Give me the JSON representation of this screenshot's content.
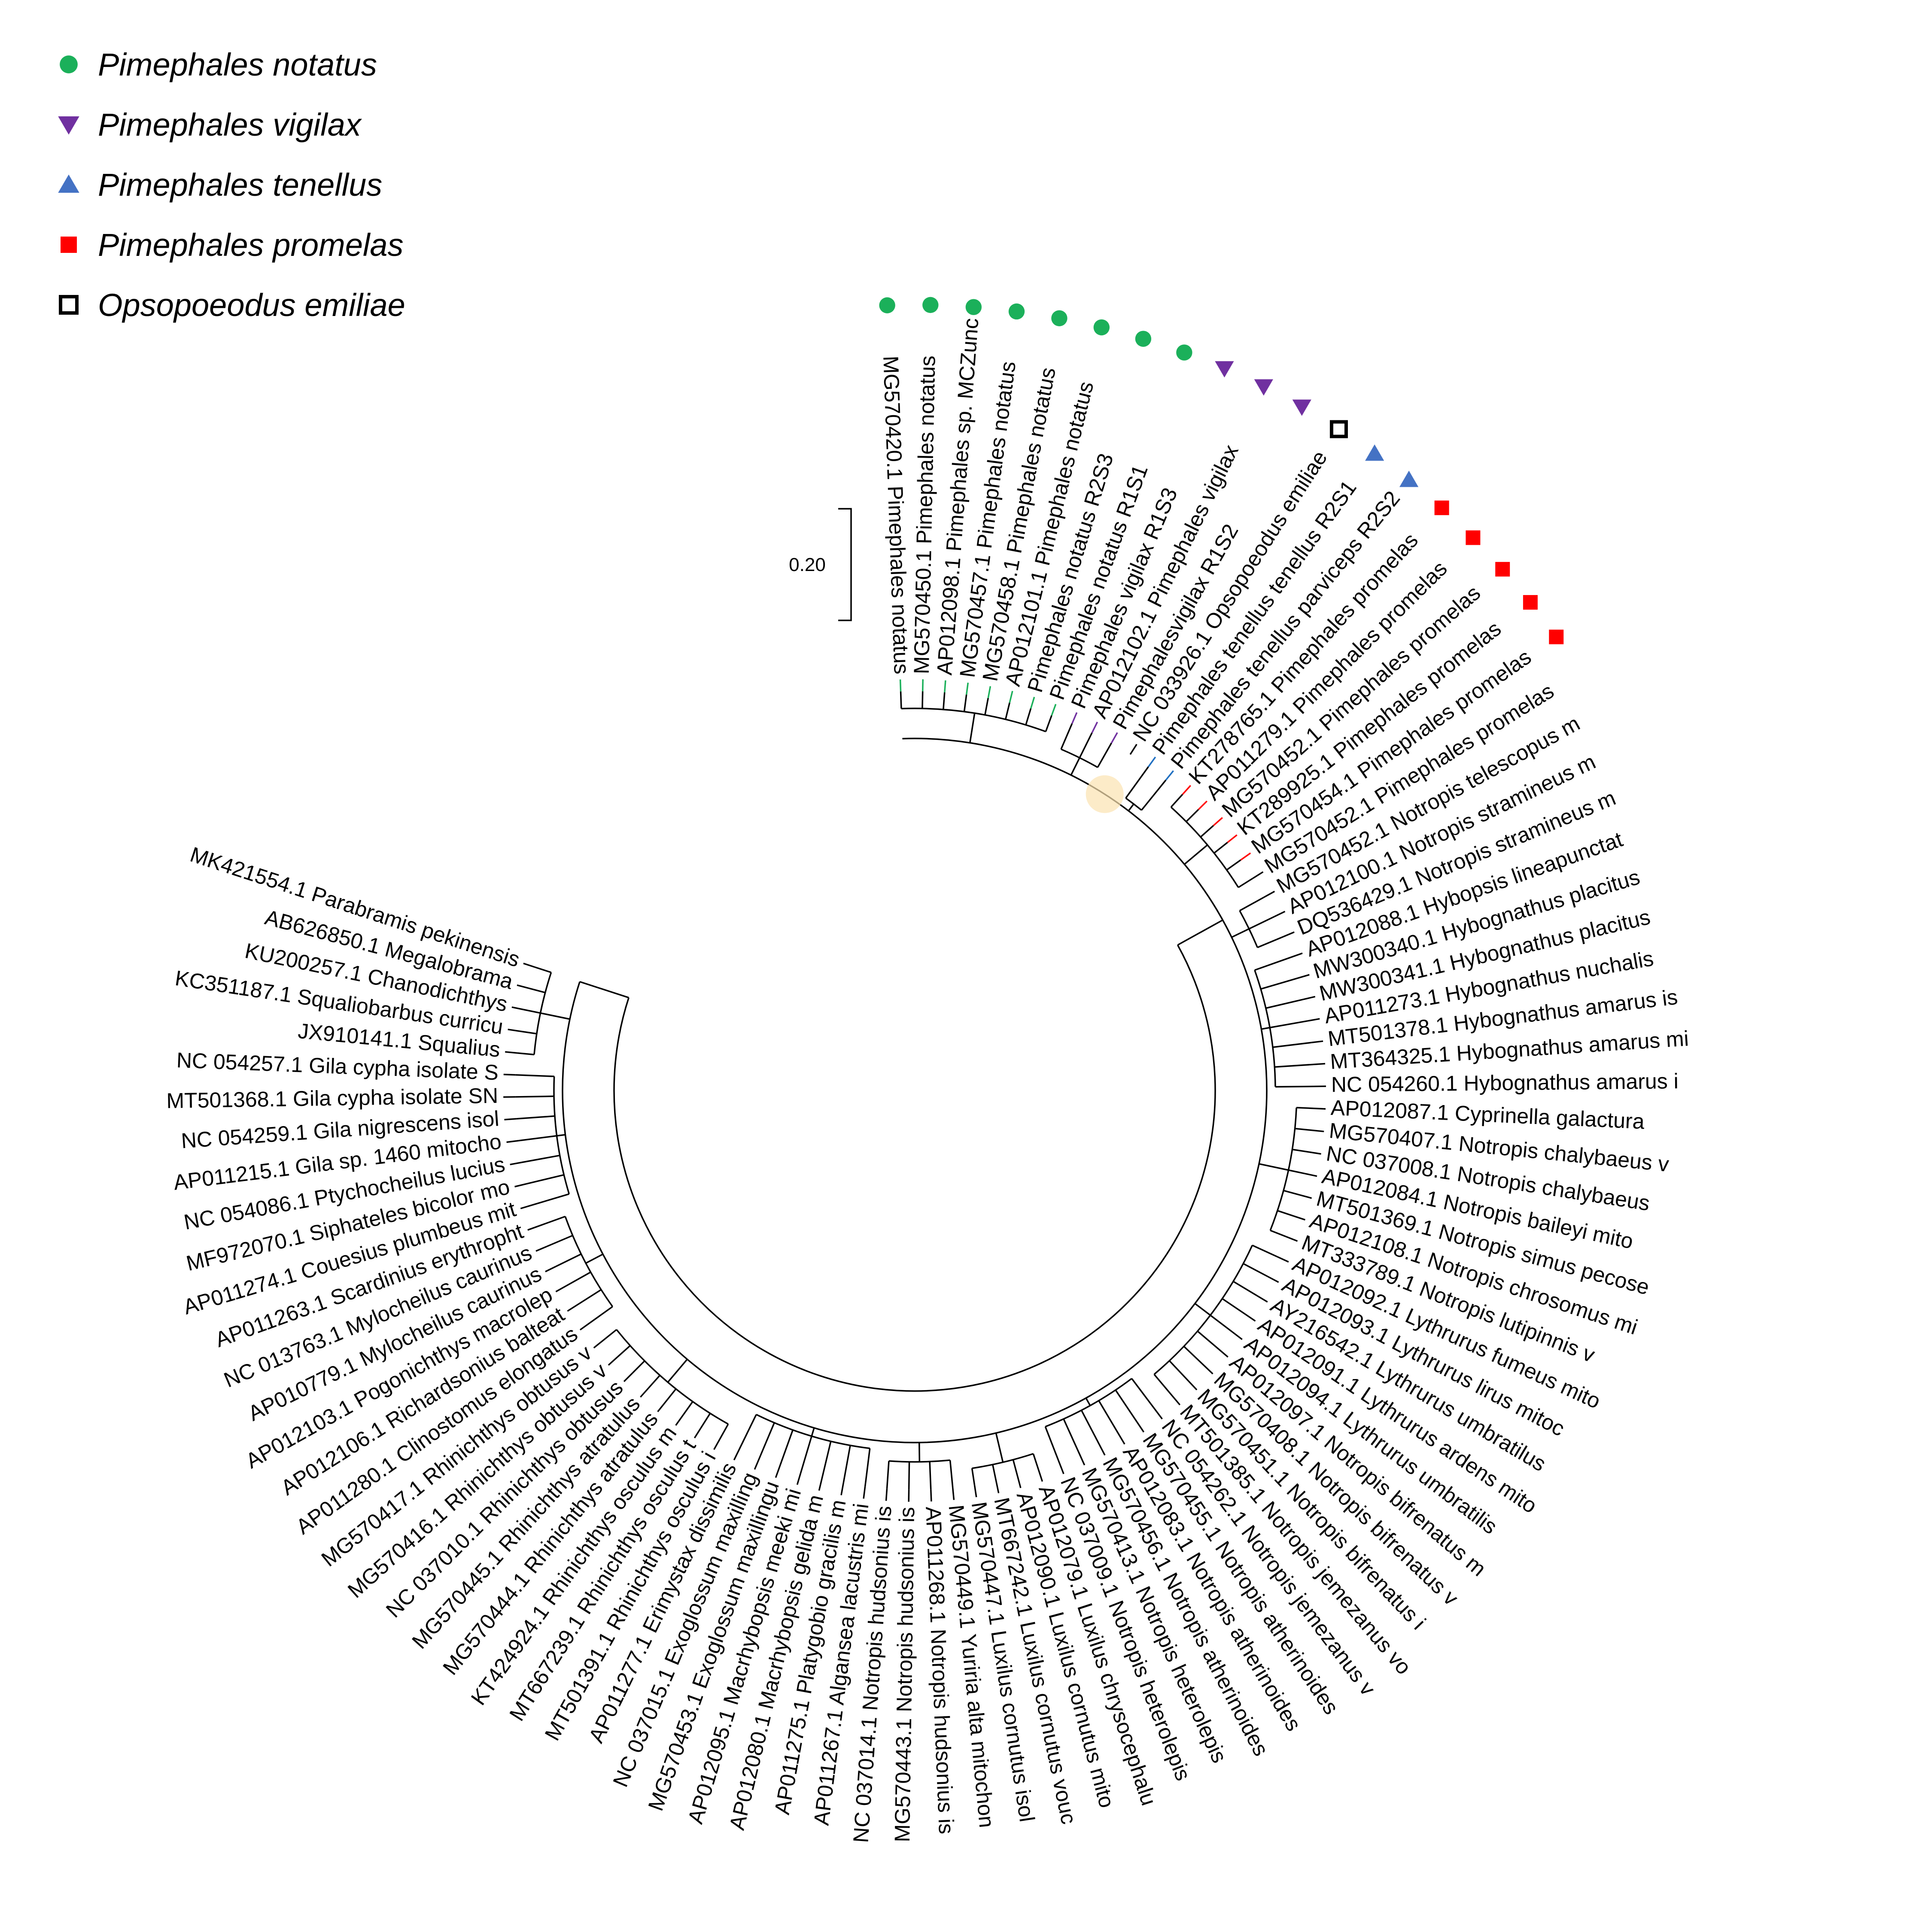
{
  "legend": [
    {
      "label": "Pimephales notatus",
      "marker": "circle",
      "color": "#1bb05a"
    },
    {
      "label": "Pimephales vigilax",
      "marker": "triangle-down",
      "color": "#7030a0"
    },
    {
      "label": "Pimephales tenellus",
      "marker": "triangle-up",
      "color": "#4472c4"
    },
    {
      "label": "Pimephales promelas",
      "marker": "square",
      "color": "#ff0000"
    },
    {
      "label": "Opsopoeodus emiliae",
      "marker": "open-square",
      "color": "#000000"
    }
  ],
  "scale_bar": {
    "label": "0.20"
  },
  "taxa": [
    {
      "label": "MG570420.1 Pimephales notatus",
      "marker": "notatus"
    },
    {
      "label": "MG570450.1 Pimephales notatus",
      "marker": "notatus"
    },
    {
      "label": "AP012098.1 Pimephales sp. MCZunc",
      "marker": "notatus"
    },
    {
      "label": "MG570457.1 Pimephales notatus",
      "marker": "notatus"
    },
    {
      "label": "MG570458.1 Pimephales notatus",
      "marker": "notatus"
    },
    {
      "label": "AP012101.1 Pimephales notatus",
      "marker": "notatus"
    },
    {
      "label": "Pimephales notatus R2S3",
      "marker": "notatus"
    },
    {
      "label": "Pimephales notatus R1S1",
      "marker": "notatus"
    },
    {
      "label": "Pimephales vigilax R1S3",
      "marker": "vigilax"
    },
    {
      "label": "AP012102.1 Pimephales vigilax",
      "marker": "vigilax"
    },
    {
      "label": "Pimephalesvigilax R1S2",
      "marker": "vigilax"
    },
    {
      "label": "NC 033926.1 Opsopoeodus emiliae",
      "marker": "emiliae"
    },
    {
      "label": "Pimephales tenellus tenellus R2S1",
      "marker": "tenellus"
    },
    {
      "label": "Pimephales tenellus parviceps R2S2",
      "marker": "tenellus"
    },
    {
      "label": "KT278765.1 Pimephales promelas",
      "marker": "promelas"
    },
    {
      "label": "AP011279.1 Pimephales promelas",
      "marker": "promelas"
    },
    {
      "label": "MG570452.1 Pimephales promelas",
      "marker": "promelas"
    },
    {
      "label": "KT289925.1 Pimephales promelas",
      "marker": "promelas"
    },
    {
      "label": "MG570454.1 Pimephales promelas",
      "marker": "promelas"
    },
    {
      "label": "MG570452.1 Pimephales promelas",
      "marker": ""
    },
    {
      "label": "MG570452.1 Notropis telescopus m",
      "marker": ""
    },
    {
      "label": "AP012100.1 Notropis stramineus m",
      "marker": ""
    },
    {
      "label": "DQ536429.1 Notropis stramineus m",
      "marker": ""
    },
    {
      "label": "AP012088.1 Hybopsis lineapunctat",
      "marker": ""
    },
    {
      "label": "MW300340.1 Hybognathus placitus",
      "marker": ""
    },
    {
      "label": "MW300341.1 Hybognathus placitus",
      "marker": ""
    },
    {
      "label": "AP011273.1 Hybognathus nuchalis",
      "marker": ""
    },
    {
      "label": "MT501378.1 Hybognathus amarus is",
      "marker": ""
    },
    {
      "label": "MT364325.1 Hybognathus amarus mi",
      "marker": ""
    },
    {
      "label": "NC 054260.1 Hybognathus amarus i",
      "marker": ""
    },
    {
      "label": "AP012087.1 Cyprinella galactura",
      "marker": ""
    },
    {
      "label": "MG570407.1 Notropis chalybaeus v",
      "marker": ""
    },
    {
      "label": "NC 037008.1 Notropis chalybaeus",
      "marker": ""
    },
    {
      "label": "AP012084.1 Notropis baileyi mito",
      "marker": ""
    },
    {
      "label": "MT501369.1 Notropis simus pecose",
      "marker": ""
    },
    {
      "label": "AP012108.1 Notropis chrosomus mi",
      "marker": ""
    },
    {
      "label": "MT333789.1 Notropis lutipinnis v",
      "marker": ""
    },
    {
      "label": "AP012092.1 Lythrurus fumeus mito",
      "marker": ""
    },
    {
      "label": "AP012093.1 Lythrurus lirus mitoc",
      "marker": ""
    },
    {
      "label": "AY216542.1 Lythrurus umbratilus",
      "marker": ""
    },
    {
      "label": "AP012091.1 Lythrurus ardens mito",
      "marker": ""
    },
    {
      "label": "AP012094.1 Lythrurus umbratilis",
      "marker": ""
    },
    {
      "label": "AP012097.1 Notropis bifrenatus m",
      "marker": ""
    },
    {
      "label": "MG570408.1 Notropis bifrenatus v",
      "marker": ""
    },
    {
      "label": "MG570451.1 Notropis bifrenatus i",
      "marker": ""
    },
    {
      "label": "MT501385.1 Notropis jemezanus vo",
      "marker": ""
    },
    {
      "label": "NC 054262.1 Notropis jemezanus v",
      "marker": ""
    },
    {
      "label": "MG570455.1 Notropis atherinoides",
      "marker": ""
    },
    {
      "label": "AP012083.1 Notropis atherinoides",
      "marker": ""
    },
    {
      "label": "MG570456.1 Notropis atherinoides",
      "marker": ""
    },
    {
      "label": "MG570413.1 Notropis heterolepis",
      "marker": ""
    },
    {
      "label": "NC 037009.1 Notropis heterolepis",
      "marker": ""
    },
    {
      "label": "AP012079.1 Luxilus chrysocephalu",
      "marker": ""
    },
    {
      "label": "AP012090.1 Luxilus cornutus mito",
      "marker": ""
    },
    {
      "label": "MT667242.1 Luxilus cornutus vouc",
      "marker": ""
    },
    {
      "label": "MG570447.1 Luxilus cornutus isol",
      "marker": ""
    },
    {
      "label": "MG570449.1 Yuriria alta mitochon",
      "marker": ""
    },
    {
      "label": "AP011268.1 Notropis hudsonius is",
      "marker": ""
    },
    {
      "label": "MG570443.1 Notropis hudsonius is",
      "marker": ""
    },
    {
      "label": "NC 037014.1 Notropis hudsonius is",
      "marker": ""
    },
    {
      "label": "AP011267.1 Algansea lacustris mi",
      "marker": ""
    },
    {
      "label": "AP011275.1 Platygobio gracilis m",
      "marker": ""
    },
    {
      "label": "AP012080.1 Macrhybopsis gelida m",
      "marker": ""
    },
    {
      "label": "AP012095.1 Macrhybopsis meeki mi",
      "marker": ""
    },
    {
      "label": "MG570453.1 Exoglossum maxillingu",
      "marker": ""
    },
    {
      "label": "NC 037015.1 Exoglossum maxilling",
      "marker": ""
    },
    {
      "label": "AP011277.1 Erimystax dissimilis",
      "marker": ""
    },
    {
      "label": "MT501391.1 Rhinichthys osculus i",
      "marker": ""
    },
    {
      "label": "MT667239.1 Rhinichthys osculus t",
      "marker": ""
    },
    {
      "label": "KT424924.1 Rhinichthys osculus m",
      "marker": ""
    },
    {
      "label": "MG570444.1 Rhinichthys atratulus",
      "marker": ""
    },
    {
      "label": "MG570445.1 Rhinichthys atratulus",
      "marker": ""
    },
    {
      "label": "NC 037010.1 Rhinichthys obtusus",
      "marker": ""
    },
    {
      "label": "MG570416.1 Rhinichthys obtusus v",
      "marker": ""
    },
    {
      "label": "MG570417.1 Rhinichthys obtusus v",
      "marker": ""
    },
    {
      "label": "AP011280.1 Clinostomus elongatus",
      "marker": ""
    },
    {
      "label": "AP012106.1 Richardsonius balteat",
      "marker": ""
    },
    {
      "label": "AP012103.1 Pogonichthys macrolep",
      "marker": ""
    },
    {
      "label": "AP010779.1 Mylocheilus caurinus",
      "marker": ""
    },
    {
      "label": "NC 013763.1 Mylocheilus caurinus",
      "marker": ""
    },
    {
      "label": "AP011263.1 Scardinius erythropht",
      "marker": ""
    },
    {
      "label": "AP011274.1 Couesius plumbeus mit",
      "marker": ""
    },
    {
      "label": "MF972070.1 Siphateles bicolor mo",
      "marker": ""
    },
    {
      "label": "NC 054086.1 Ptychocheilus lucius",
      "marker": ""
    },
    {
      "label": "AP011215.1 Gila sp. 1460 mitocho",
      "marker": ""
    },
    {
      "label": "NC 054259.1 Gila nigrescens isol",
      "marker": ""
    },
    {
      "label": "MT501368.1 Gila cypha isolate SN",
      "marker": ""
    },
    {
      "label": "NC 054257.1 Gila cypha isolate S",
      "marker": ""
    },
    {
      "label": "JX910141.1 Squalius",
      "marker": ""
    },
    {
      "label": "KC351187.1 Squaliobarbus curricu",
      "marker": ""
    },
    {
      "label": "KU200257.1 Chanodichthys",
      "marker": ""
    },
    {
      "label": "AB626850.1 Megalobrama",
      "marker": ""
    },
    {
      "label": "MK421554.1 Parabramis pekinensis",
      "marker": ""
    }
  ]
}
